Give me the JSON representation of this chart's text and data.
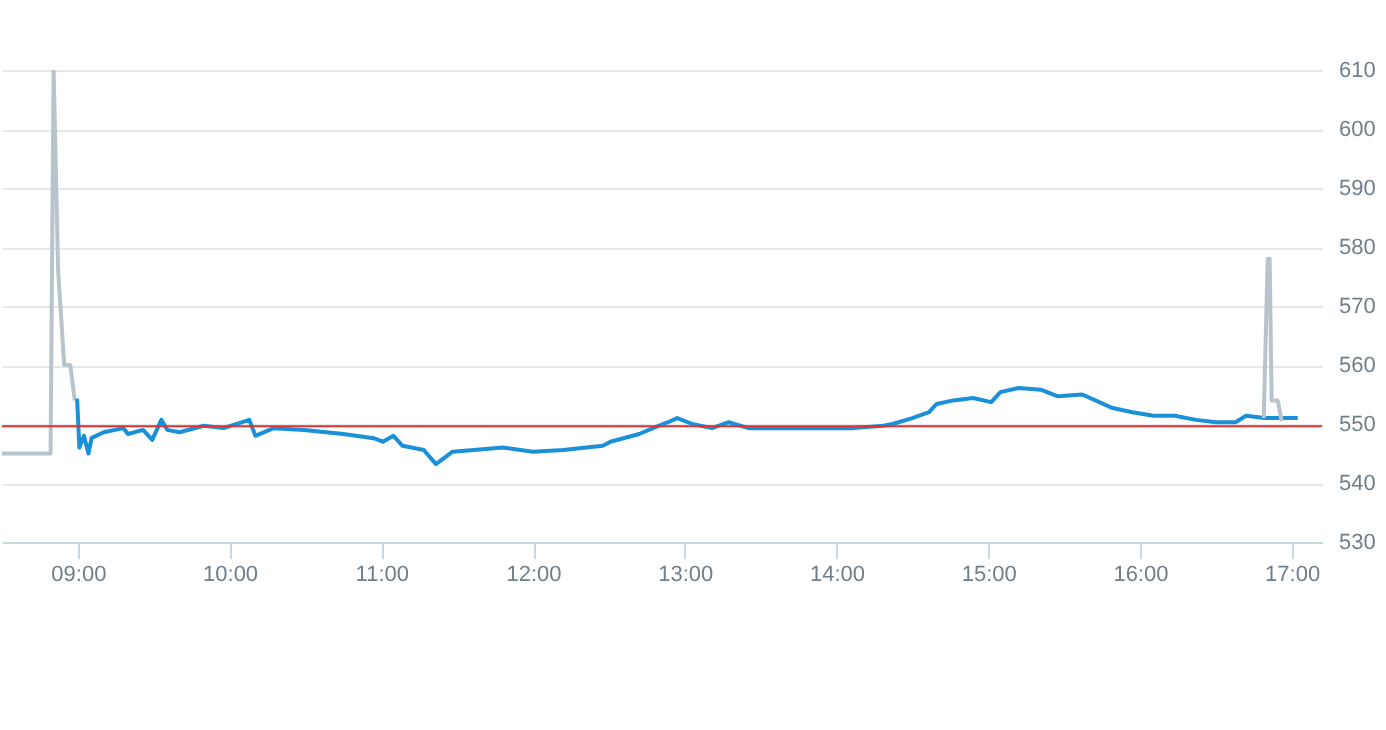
{
  "chart_data": {
    "type": "line",
    "xlim": [
      8.5,
      17.2
    ],
    "ylim": [
      530,
      610
    ],
    "xticks": [
      {
        "value": 9,
        "label": "09:00"
      },
      {
        "value": 10,
        "label": "10:00"
      },
      {
        "value": 11,
        "label": "11:00"
      },
      {
        "value": 12,
        "label": "12:00"
      },
      {
        "value": 13,
        "label": "13:00"
      },
      {
        "value": 14,
        "label": "14:00"
      },
      {
        "value": 15,
        "label": "15:00"
      },
      {
        "value": 16,
        "label": "16:00"
      },
      {
        "value": 17,
        "label": "17:00"
      }
    ],
    "yticks": [
      530,
      540,
      550,
      560,
      570,
      580,
      590,
      600,
      610
    ],
    "grid": "y",
    "series": [
      {
        "color": "#b8c4cc",
        "x": [
          8.5,
          8.82,
          8.84,
          8.87,
          8.91,
          8.95,
          8.98
        ],
        "values": [
          545,
          545,
          610,
          576,
          560,
          560,
          554
        ]
      },
      {
        "color": "#1a90d9",
        "x": [
          8.995,
          9.01,
          9.04,
          9.07,
          9.09,
          9.17,
          9.3,
          9.33,
          9.43,
          9.49,
          9.55,
          9.59,
          9.67,
          9.83,
          9.96,
          10.13,
          10.17,
          10.29,
          10.49,
          10.75,
          10.95,
          11.01,
          11.08,
          11.14,
          11.28,
          11.36,
          11.47,
          11.61,
          11.8,
          12.0,
          12.2,
          12.46,
          12.51,
          12.7,
          12.79,
          12.89,
          12.95,
          13.05,
          13.18,
          13.29,
          13.42,
          13.51,
          14.11,
          14.31,
          14.37,
          14.5,
          14.61,
          14.66,
          14.77,
          14.9,
          15.02,
          15.08,
          15.2,
          15.35,
          15.46,
          15.62,
          15.82,
          15.95,
          16.09,
          16.23,
          16.37,
          16.5,
          16.63,
          16.7,
          16.82,
          17.04
        ],
        "values": [
          554.3,
          546,
          548,
          545,
          547.6,
          548.6,
          549.3,
          548.3,
          549,
          547.3,
          550.7,
          549,
          548.6,
          549.7,
          549.3,
          550.7,
          548,
          549.3,
          549,
          548.3,
          547.6,
          547,
          548,
          546.3,
          545.6,
          543.2,
          545.3,
          545.6,
          546,
          545.3,
          545.6,
          546.3,
          547,
          548.3,
          549.3,
          550.3,
          551,
          550,
          549.3,
          550.3,
          549.3,
          549.3,
          549.3,
          549.7,
          550,
          551,
          552,
          553.4,
          554,
          554.4,
          553.7,
          555.4,
          556.1,
          555.8,
          554.7,
          555,
          552.7,
          552,
          551.4,
          551.4,
          550.7,
          550.3,
          550.3,
          551.4,
          551,
          551
        ]
      },
      {
        "color": "#b8c4cc",
        "x": [
          16.816,
          16.842,
          16.855,
          16.868,
          16.908,
          16.934
        ],
        "values": [
          551,
          578,
          578,
          554,
          554,
          550.5
        ]
      }
    ],
    "ref_lines": [
      {
        "axis": "y",
        "value": 549.6,
        "color": "#e03030"
      }
    ]
  }
}
